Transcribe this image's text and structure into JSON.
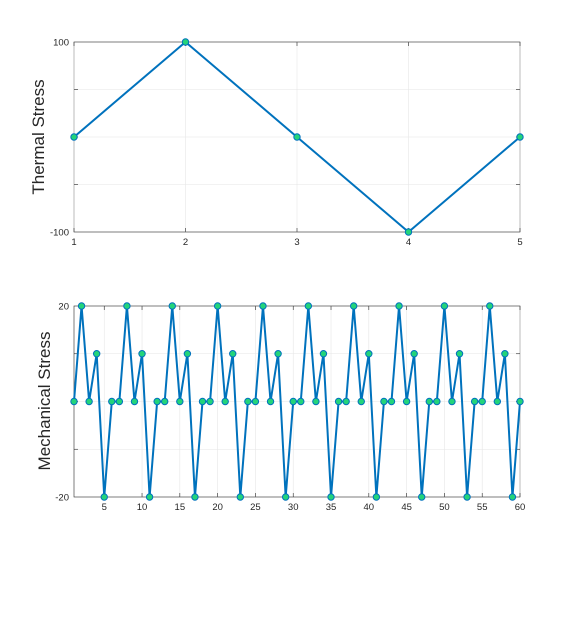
{
  "chart_data": [
    {
      "type": "line",
      "title": "",
      "xlabel": "",
      "ylabel": "Thermal Stress",
      "x": [
        1,
        2,
        3,
        4,
        5
      ],
      "xlim": [
        1,
        5
      ],
      "ylim": [
        -100,
        100
      ],
      "xticks": [
        "1",
        "2",
        "3",
        "4",
        "5"
      ],
      "yticks": [
        "-100",
        "100"
      ],
      "grid": true,
      "series": [
        {
          "values": [
            0,
            100,
            0,
            -100,
            0
          ]
        }
      ],
      "colors": {
        "line": "#0072BD",
        "marker_face": "#23D47A",
        "marker_edge": "#0072BD"
      }
    },
    {
      "type": "line",
      "title": "",
      "xlabel": "",
      "ylabel": "Mechanical Stress",
      "xlim": [
        1,
        60
      ],
      "ylim": [
        -20,
        20
      ],
      "xticks": [
        "5",
        "10",
        "15",
        "20",
        "25",
        "30",
        "35",
        "40",
        "45",
        "50",
        "55",
        "60"
      ],
      "yticks": [
        "-20",
        "20"
      ],
      "grid": true,
      "series": [
        {
          "pattern": [
            0,
            20,
            0,
            10,
            -20,
            0
          ],
          "values": [
            0,
            20,
            0,
            10,
            -20,
            0,
            0,
            20,
            0,
            10,
            -20,
            0,
            0,
            20,
            0,
            10,
            -20,
            0,
            0,
            20,
            0,
            10,
            -20,
            0,
            0,
            20,
            0,
            10,
            -20,
            0,
            0,
            20,
            0,
            10,
            -20,
            0,
            0,
            20,
            0,
            10,
            -20,
            0,
            0,
            20,
            0,
            10,
            -20,
            0,
            0,
            20,
            0,
            10,
            -20,
            0,
            0,
            20,
            0,
            10,
            -20,
            0
          ]
        }
      ],
      "colors": {
        "line": "#0072BD",
        "marker_face": "#23D47A",
        "marker_edge": "#0072BD"
      }
    }
  ]
}
